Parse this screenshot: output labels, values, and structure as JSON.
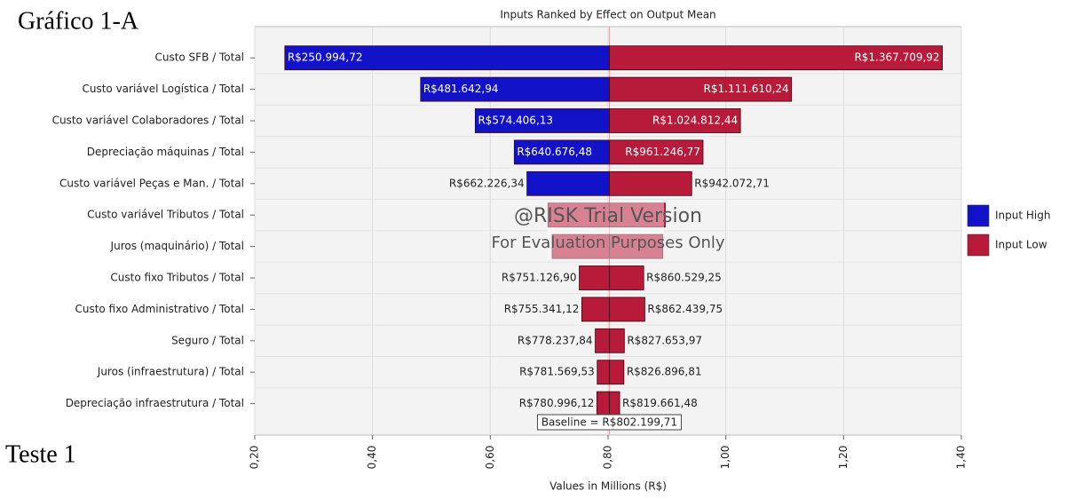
{
  "chart_data": {
    "type": "tornado",
    "title": "Inputs Ranked by Effect on Output Mean",
    "corner_title": "Gráfico 1-A",
    "corner_note": "Teste 1",
    "x_label": "Values in Millions (R$)",
    "watermark": [
      "@RISK Trial Version",
      "For Evaluation Purposes Only"
    ],
    "categories": [
      "Custo SFB / Total",
      "Custo variável Logística / Total",
      "Custo variável Colaboradores / Total",
      "Depreciação máquinas / Total",
      "Custo variável Peças e Man. / Total",
      "Custo variável Tributos / Total",
      "Juros (maquinário) / Total",
      "Custo fixo Tributos / Total",
      "Custo fixo Administrativo / Total",
      "Seguro / Total",
      "Juros (infraestrutura) / Total",
      "Depreciação infraestrutura / Total"
    ],
    "low_values": [
      0.25099472,
      0.48164294,
      0.57440613,
      0.64067648,
      0.66222634,
      0.698,
      0.705,
      0.7511269,
      0.75534112,
      0.77823784,
      0.78156953,
      0.78099612
    ],
    "low_labels": [
      "R$250.994,72",
      "R$481.642,94",
      "R$574.406,13",
      "R$640.676,48",
      "R$662.226,34",
      null,
      null,
      "R$751.126,90",
      "R$755.341,12",
      "R$778.237,84",
      "R$781.569,53",
      "R$780.996,12"
    ],
    "low_colors": [
      "#1212c8",
      "#1212c8",
      "#1212c8",
      "#1212c8",
      "#1212c8",
      "#b81a3a",
      "#b81a3a",
      "#b81a3a",
      "#b81a3a",
      "#b81a3a",
      "#b81a3a",
      "#b81a3a"
    ],
    "high_values": [
      1.36770992,
      1.11161024,
      1.02481244,
      0.96124677,
      0.94207271,
      0.897,
      0.893,
      0.86052925,
      0.86243975,
      0.82765397,
      0.82689681,
      0.81966148
    ],
    "high_labels": [
      "R$1.367.709,92",
      "R$1.111.610,24",
      "R$1.024.812,44",
      "R$961.246,77",
      "R$942.072,71",
      null,
      null,
      "R$860.529,25",
      "R$862.439,75",
      "R$827.653,97",
      "R$826.896,81",
      "R$819.661,48"
    ],
    "high_colors": [
      "#b81a3a",
      "#b81a3a",
      "#b81a3a",
      "#b81a3a",
      "#b81a3a",
      "#b81a3a",
      "#b81a3a",
      "#b81a3a",
      "#b81a3a",
      "#b81a3a",
      "#b81a3a",
      "#b81a3a"
    ],
    "baseline": 0.80219971,
    "baseline_label": "Baseline = R$802.199,71",
    "legend": [
      {
        "name": "Input High",
        "color": "#1212c8"
      },
      {
        "name": "Input Low",
        "color": "#b81a3a"
      }
    ],
    "legend_position": "right",
    "xlim": [
      0.2,
      1.4
    ],
    "xticks": [
      {
        "value": 0.2,
        "label": "0,20"
      },
      {
        "value": 0.4,
        "label": "0,40"
      },
      {
        "value": 0.6,
        "label": "0,60"
      },
      {
        "value": 0.8,
        "label": "0,80"
      },
      {
        "value": 1.0,
        "label": "1,00"
      },
      {
        "value": 1.2,
        "label": "1,20"
      },
      {
        "value": 1.4,
        "label": "1,40"
      }
    ],
    "grid": true
  }
}
